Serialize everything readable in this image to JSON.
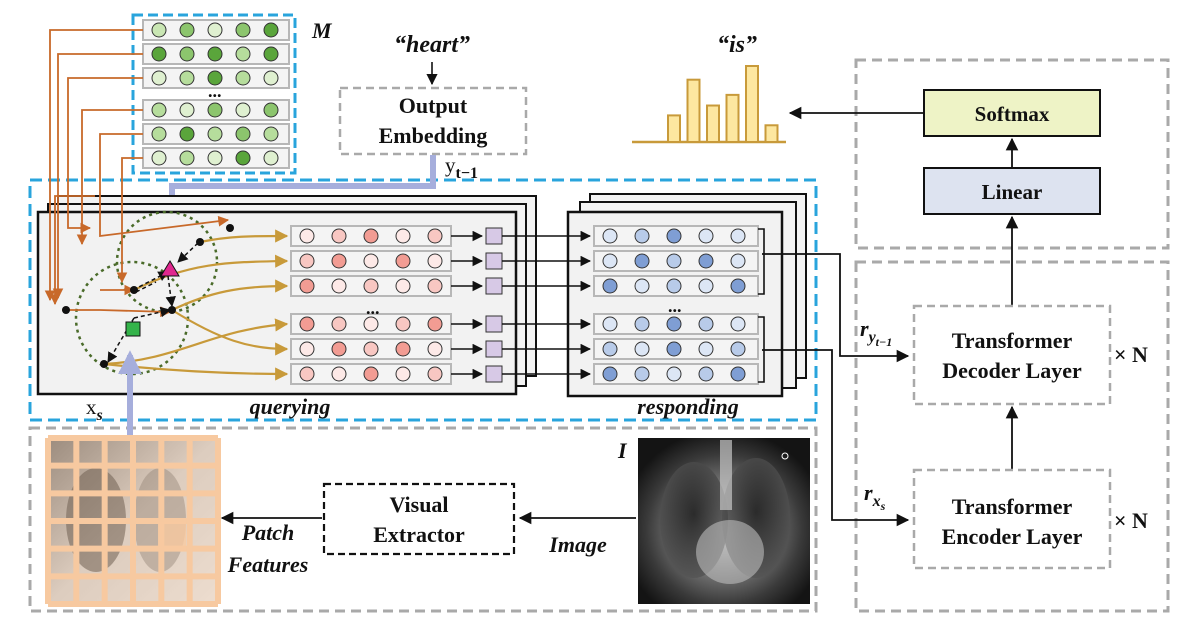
{
  "memory": {
    "label": "M",
    "ellipsis": "..."
  },
  "output_embedding": {
    "quote": "“heart”",
    "line1": "Output",
    "line2": "Embedding",
    "y_label": "y",
    "y_sub": "t−1"
  },
  "histogram": {
    "quote": "“is”",
    "bar_values": [
      0.35,
      0.82,
      0.48,
      0.62,
      1.0,
      0.22
    ]
  },
  "softmax": {
    "label": "Softmax",
    "color": "#eef3c6"
  },
  "linear": {
    "label": "Linear",
    "color": "#dde3f0"
  },
  "decoder": {
    "line1": "Transformer",
    "line2": "Decoder Layer",
    "times": "× N",
    "r_label": "r",
    "r_sub": "y",
    "r_subsub": "t−1"
  },
  "encoder": {
    "line1": "Transformer",
    "line2": "Encoder Layer",
    "times": "× N",
    "r_label": "r",
    "r_sub": "x",
    "r_subsub": "s"
  },
  "querying": {
    "label": "querying",
    "ellipsis": "..."
  },
  "responding": {
    "label": "responding",
    "ellipsis": "..."
  },
  "xs_label": {
    "main": "x",
    "sub": "s"
  },
  "visual_extractor": {
    "line1": "Visual",
    "line2": "Extractor"
  },
  "image": {
    "label": "I",
    "arrow_label": "Image"
  },
  "patch": {
    "line1": "Patch",
    "line2": "Features"
  },
  "colors": {
    "dashed_blue": "#29a4dc",
    "dashed_gray": "#a9a9a9",
    "orange_arrow": "#c8692a",
    "gold_arrow": "#c89a3a",
    "thick_arrow": "#a6aedc",
    "patch_grid": "#f7c9a0"
  }
}
